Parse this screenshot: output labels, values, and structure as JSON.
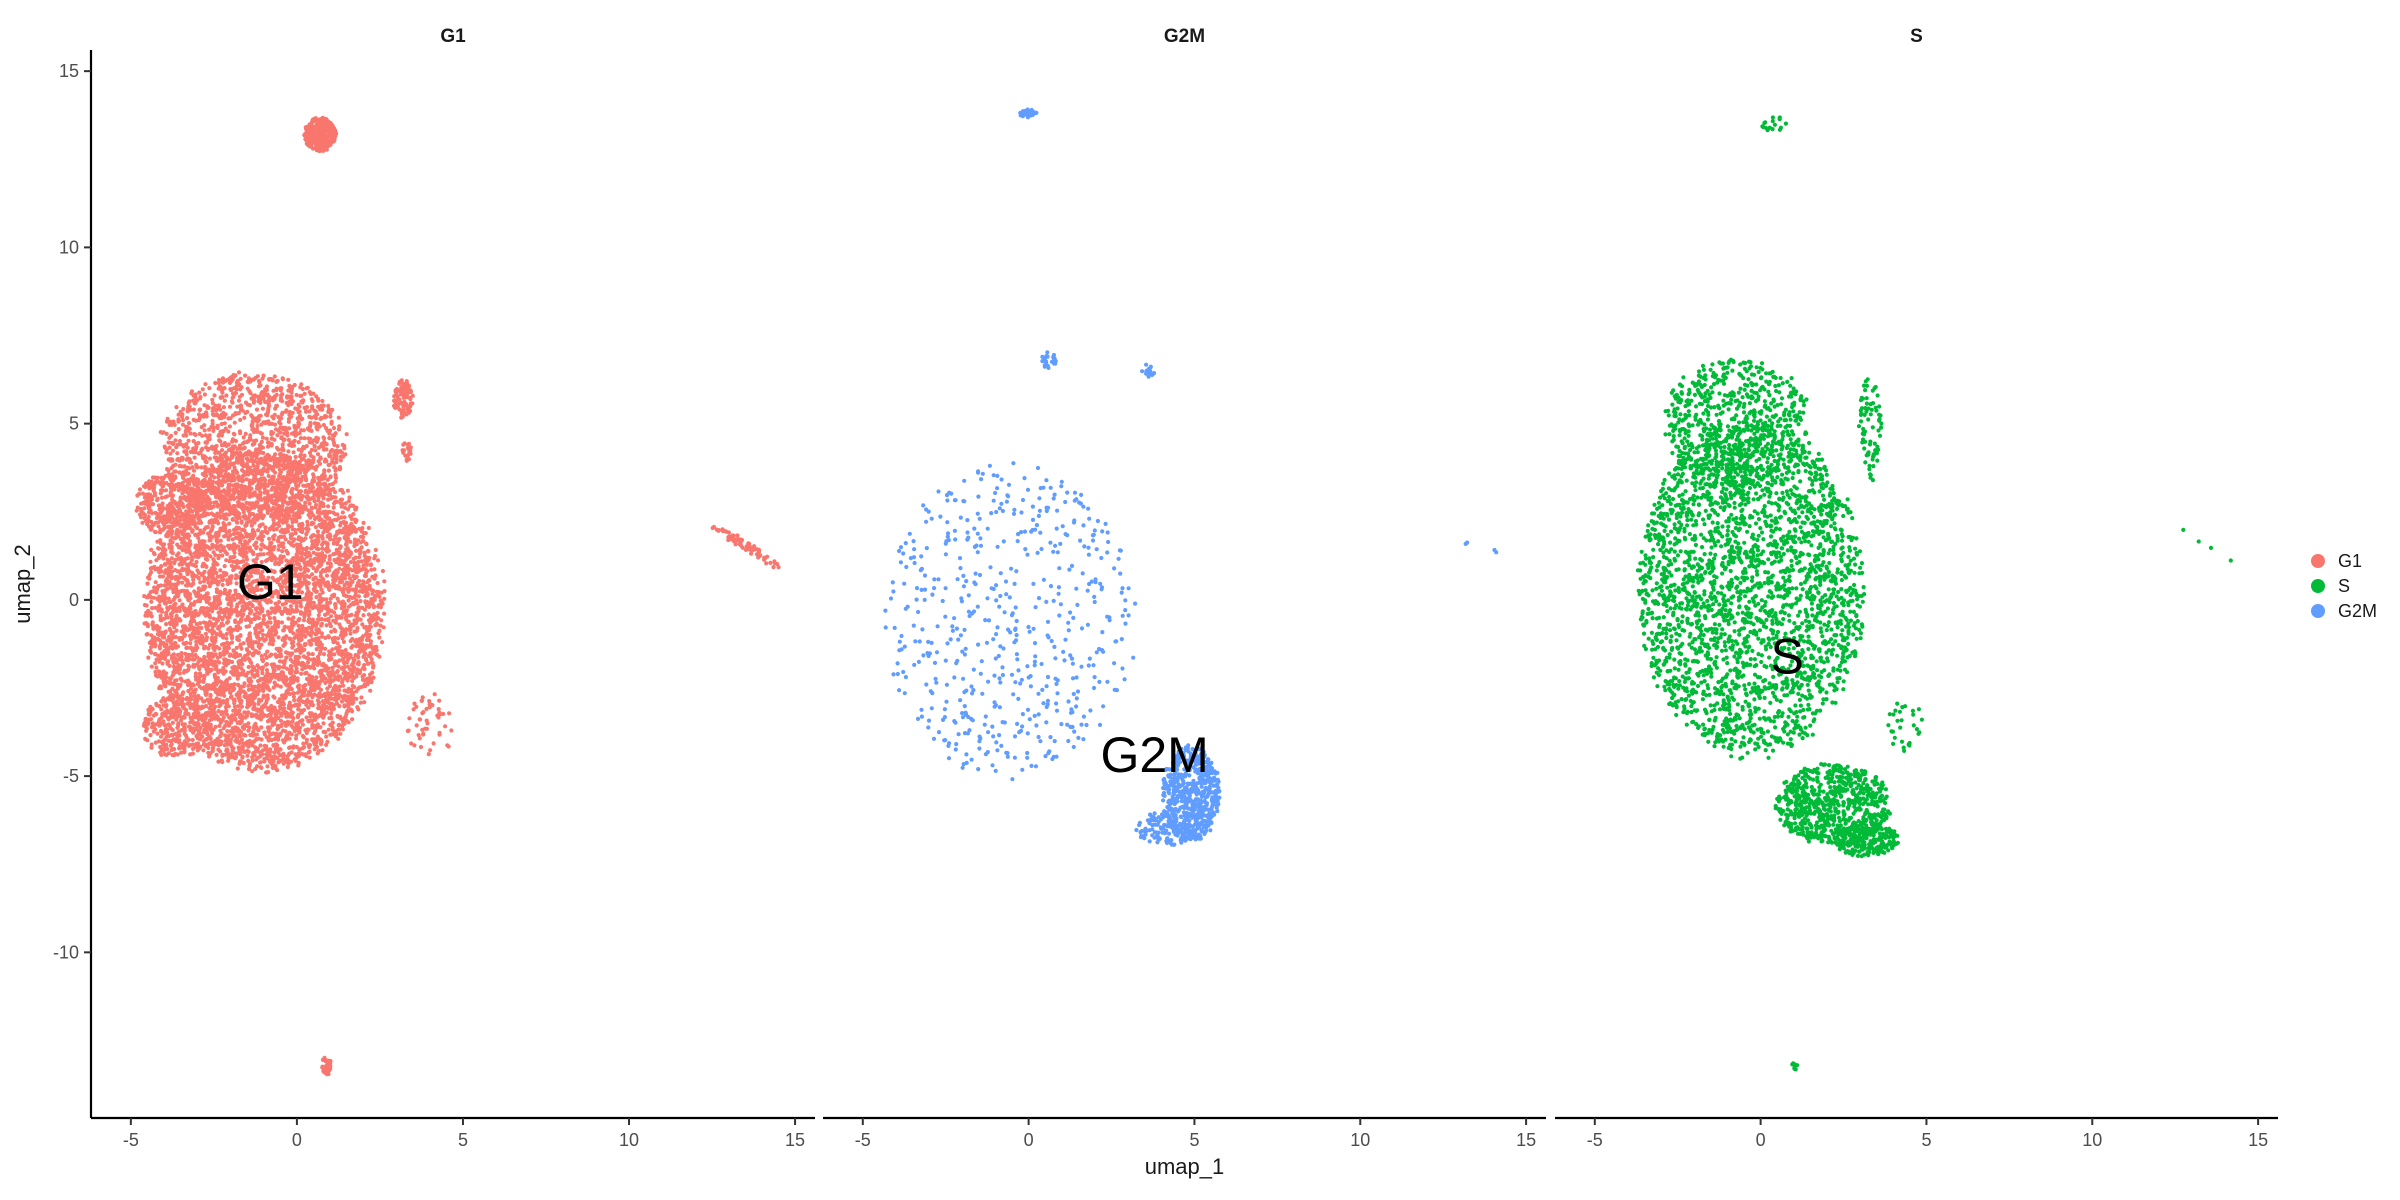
{
  "chart_data": {
    "type": "scatter",
    "title": "",
    "xlabel": "umap_1",
    "ylabel": "umap_2",
    "xlim": [
      -6.2,
      15.6
    ],
    "ylim": [
      -14.7,
      15.6
    ],
    "x_ticks": [
      -5,
      0,
      5,
      10,
      15
    ],
    "y_ticks": [
      -10,
      -5,
      0,
      5,
      10,
      15
    ],
    "grid": false,
    "legend_position": "right",
    "legend": [
      {
        "name": "G1",
        "color": "#F8766D"
      },
      {
        "name": "S",
        "color": "#00BA38"
      },
      {
        "name": "G2M",
        "color": "#619CFF"
      }
    ],
    "facets": [
      {
        "name": "G1",
        "color": "#F8766D",
        "label": {
          "text": "G1",
          "x": -0.8,
          "y": 0.5
        },
        "clusters": [
          {
            "cx": -1.0,
            "cy": -0.3,
            "rx": 3.7,
            "ry": 4.7,
            "n": 5200
          },
          {
            "cx": -1.3,
            "cy": 4.3,
            "rx": 2.9,
            "ry": 2.2,
            "n": 1300
          },
          {
            "cx": -3.9,
            "cy": 2.7,
            "rx": 1.0,
            "ry": 0.9,
            "n": 300
          },
          {
            "cx": -3.6,
            "cy": -3.6,
            "rx": 1.1,
            "ry": 0.9,
            "n": 280
          },
          {
            "cx": 0.7,
            "cy": 13.2,
            "rx": 0.5,
            "ry": 0.5,
            "n": 340
          },
          {
            "cx": 3.2,
            "cy": 5.7,
            "rx": 0.3,
            "ry": 0.6,
            "n": 90
          },
          {
            "cx": 3.3,
            "cy": 4.2,
            "rx": 0.15,
            "ry": 0.3,
            "n": 20
          },
          {
            "cx": 4.0,
            "cy": -3.6,
            "rx": 0.7,
            "ry": 1.0,
            "n": 50
          },
          {
            "cx": 0.9,
            "cy": -13.2,
            "rx": 0.15,
            "ry": 0.3,
            "n": 30
          }
        ],
        "lines": [
          {
            "x0": 12.5,
            "y0": 2.1,
            "x1": 14.5,
            "y1": 1.0,
            "n": 70
          }
        ]
      },
      {
        "name": "G2M",
        "color": "#619CFF",
        "label": {
          "text": "G2M",
          "x": 3.8,
          "y": -4.4
        },
        "clusters": [
          {
            "cx": -0.6,
            "cy": -0.6,
            "rx": 3.9,
            "ry": 4.6,
            "n": 540
          },
          {
            "cx": 4.9,
            "cy": -5.5,
            "rx": 0.9,
            "ry": 1.4,
            "n": 560
          },
          {
            "cx": 4.1,
            "cy": -6.5,
            "rx": 0.9,
            "ry": 0.5,
            "n": 120
          },
          {
            "cx": 0.0,
            "cy": 13.8,
            "rx": 0.3,
            "ry": 0.12,
            "n": 30
          },
          {
            "cx": 0.6,
            "cy": 6.8,
            "rx": 0.25,
            "ry": 0.25,
            "n": 22
          },
          {
            "cx": 3.6,
            "cy": 6.5,
            "rx": 0.2,
            "ry": 0.2,
            "n": 18
          }
        ],
        "lines": [
          {
            "x0": 12.5,
            "y0": 2.0,
            "x1": 14.8,
            "y1": 1.0,
            "n": 4
          }
        ]
      },
      {
        "name": "S",
        "color": "#00BA38",
        "label": {
          "text": "S",
          "x": 0.8,
          "y": -1.6
        },
        "clusters": [
          {
            "cx": -0.3,
            "cy": 0.3,
            "rx": 3.5,
            "ry": 4.9,
            "n": 2700
          },
          {
            "cx": -0.7,
            "cy": 5.0,
            "rx": 2.3,
            "ry": 1.9,
            "n": 620
          },
          {
            "cx": 2.2,
            "cy": -5.8,
            "rx": 1.8,
            "ry": 1.2,
            "n": 700
          },
          {
            "cx": 3.2,
            "cy": -6.8,
            "rx": 1.0,
            "ry": 0.5,
            "n": 220
          },
          {
            "cx": 3.3,
            "cy": 4.9,
            "rx": 0.35,
            "ry": 1.6,
            "n": 75
          },
          {
            "cx": 0.5,
            "cy": 13.5,
            "rx": 0.5,
            "ry": 0.35,
            "n": 16
          },
          {
            "cx": 4.4,
            "cy": -3.6,
            "rx": 0.6,
            "ry": 0.9,
            "n": 30
          },
          {
            "cx": 1.0,
            "cy": -13.2,
            "rx": 0.1,
            "ry": 0.2,
            "n": 7
          }
        ],
        "lines": [
          {
            "x0": 12.6,
            "y0": 2.1,
            "x1": 14.2,
            "y1": 1.1,
            "n": 4
          }
        ]
      }
    ]
  }
}
